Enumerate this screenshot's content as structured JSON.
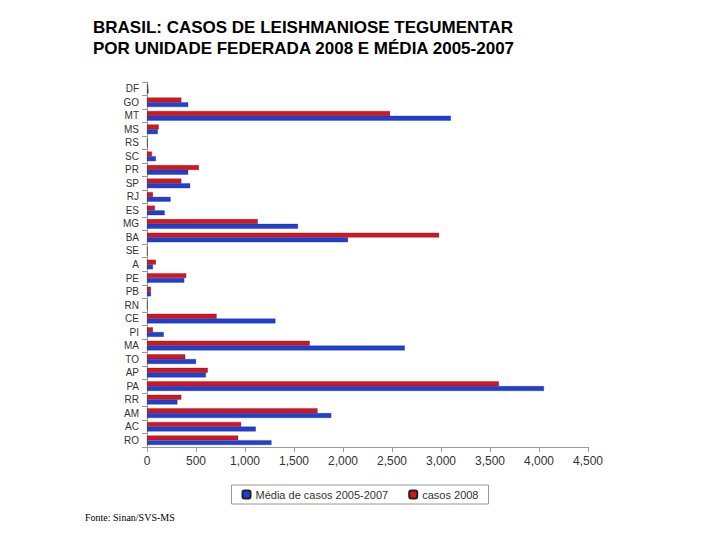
{
  "chart_data": {
    "type": "bar",
    "orientation": "horizontal",
    "title": "BRASIL: CASOS DE LEISHMANIOSE TEGUMENTAR\nPOR UNIDADE FEDERADA 2008 E MÉDIA 2005-2007",
    "annotations": [
      "Fonte: Sinan/SVS-MS"
    ],
    "categories": [
      "DF",
      "GO",
      "MT",
      "MS",
      "RS",
      "SC",
      "PR",
      "SP",
      "RJ",
      "ES",
      "MG",
      "BA",
      "SE",
      "A",
      "PE",
      "PB",
      "RN",
      "CE",
      "PI",
      "MA",
      "TO",
      "AP",
      "PA",
      "RR",
      "AM",
      "AC",
      "RO"
    ],
    "series": [
      {
        "name": "Média de casos 2005-2007",
        "color": "#1f3fd6",
        "values": [
          15,
          420,
          3100,
          110,
          5,
          90,
          420,
          440,
          240,
          180,
          1540,
          2050,
          5,
          60,
          380,
          40,
          5,
          1310,
          170,
          2630,
          500,
          600,
          4050,
          310,
          1880,
          1110,
          1270
        ]
      },
      {
        "name": "casos 2008",
        "color": "#d9141c",
        "values": [
          10,
          350,
          2480,
          120,
          5,
          50,
          530,
          350,
          60,
          80,
          1130,
          2980,
          5,
          90,
          400,
          40,
          5,
          710,
          60,
          1660,
          390,
          620,
          3590,
          350,
          1740,
          960,
          930
        ]
      }
    ],
    "xlim": [
      0,
      4500
    ],
    "xticks": [
      0,
      500,
      1000,
      1500,
      2000,
      2500,
      3000,
      3500,
      4000,
      4500
    ],
    "grid": false,
    "legend": "bottom"
  }
}
